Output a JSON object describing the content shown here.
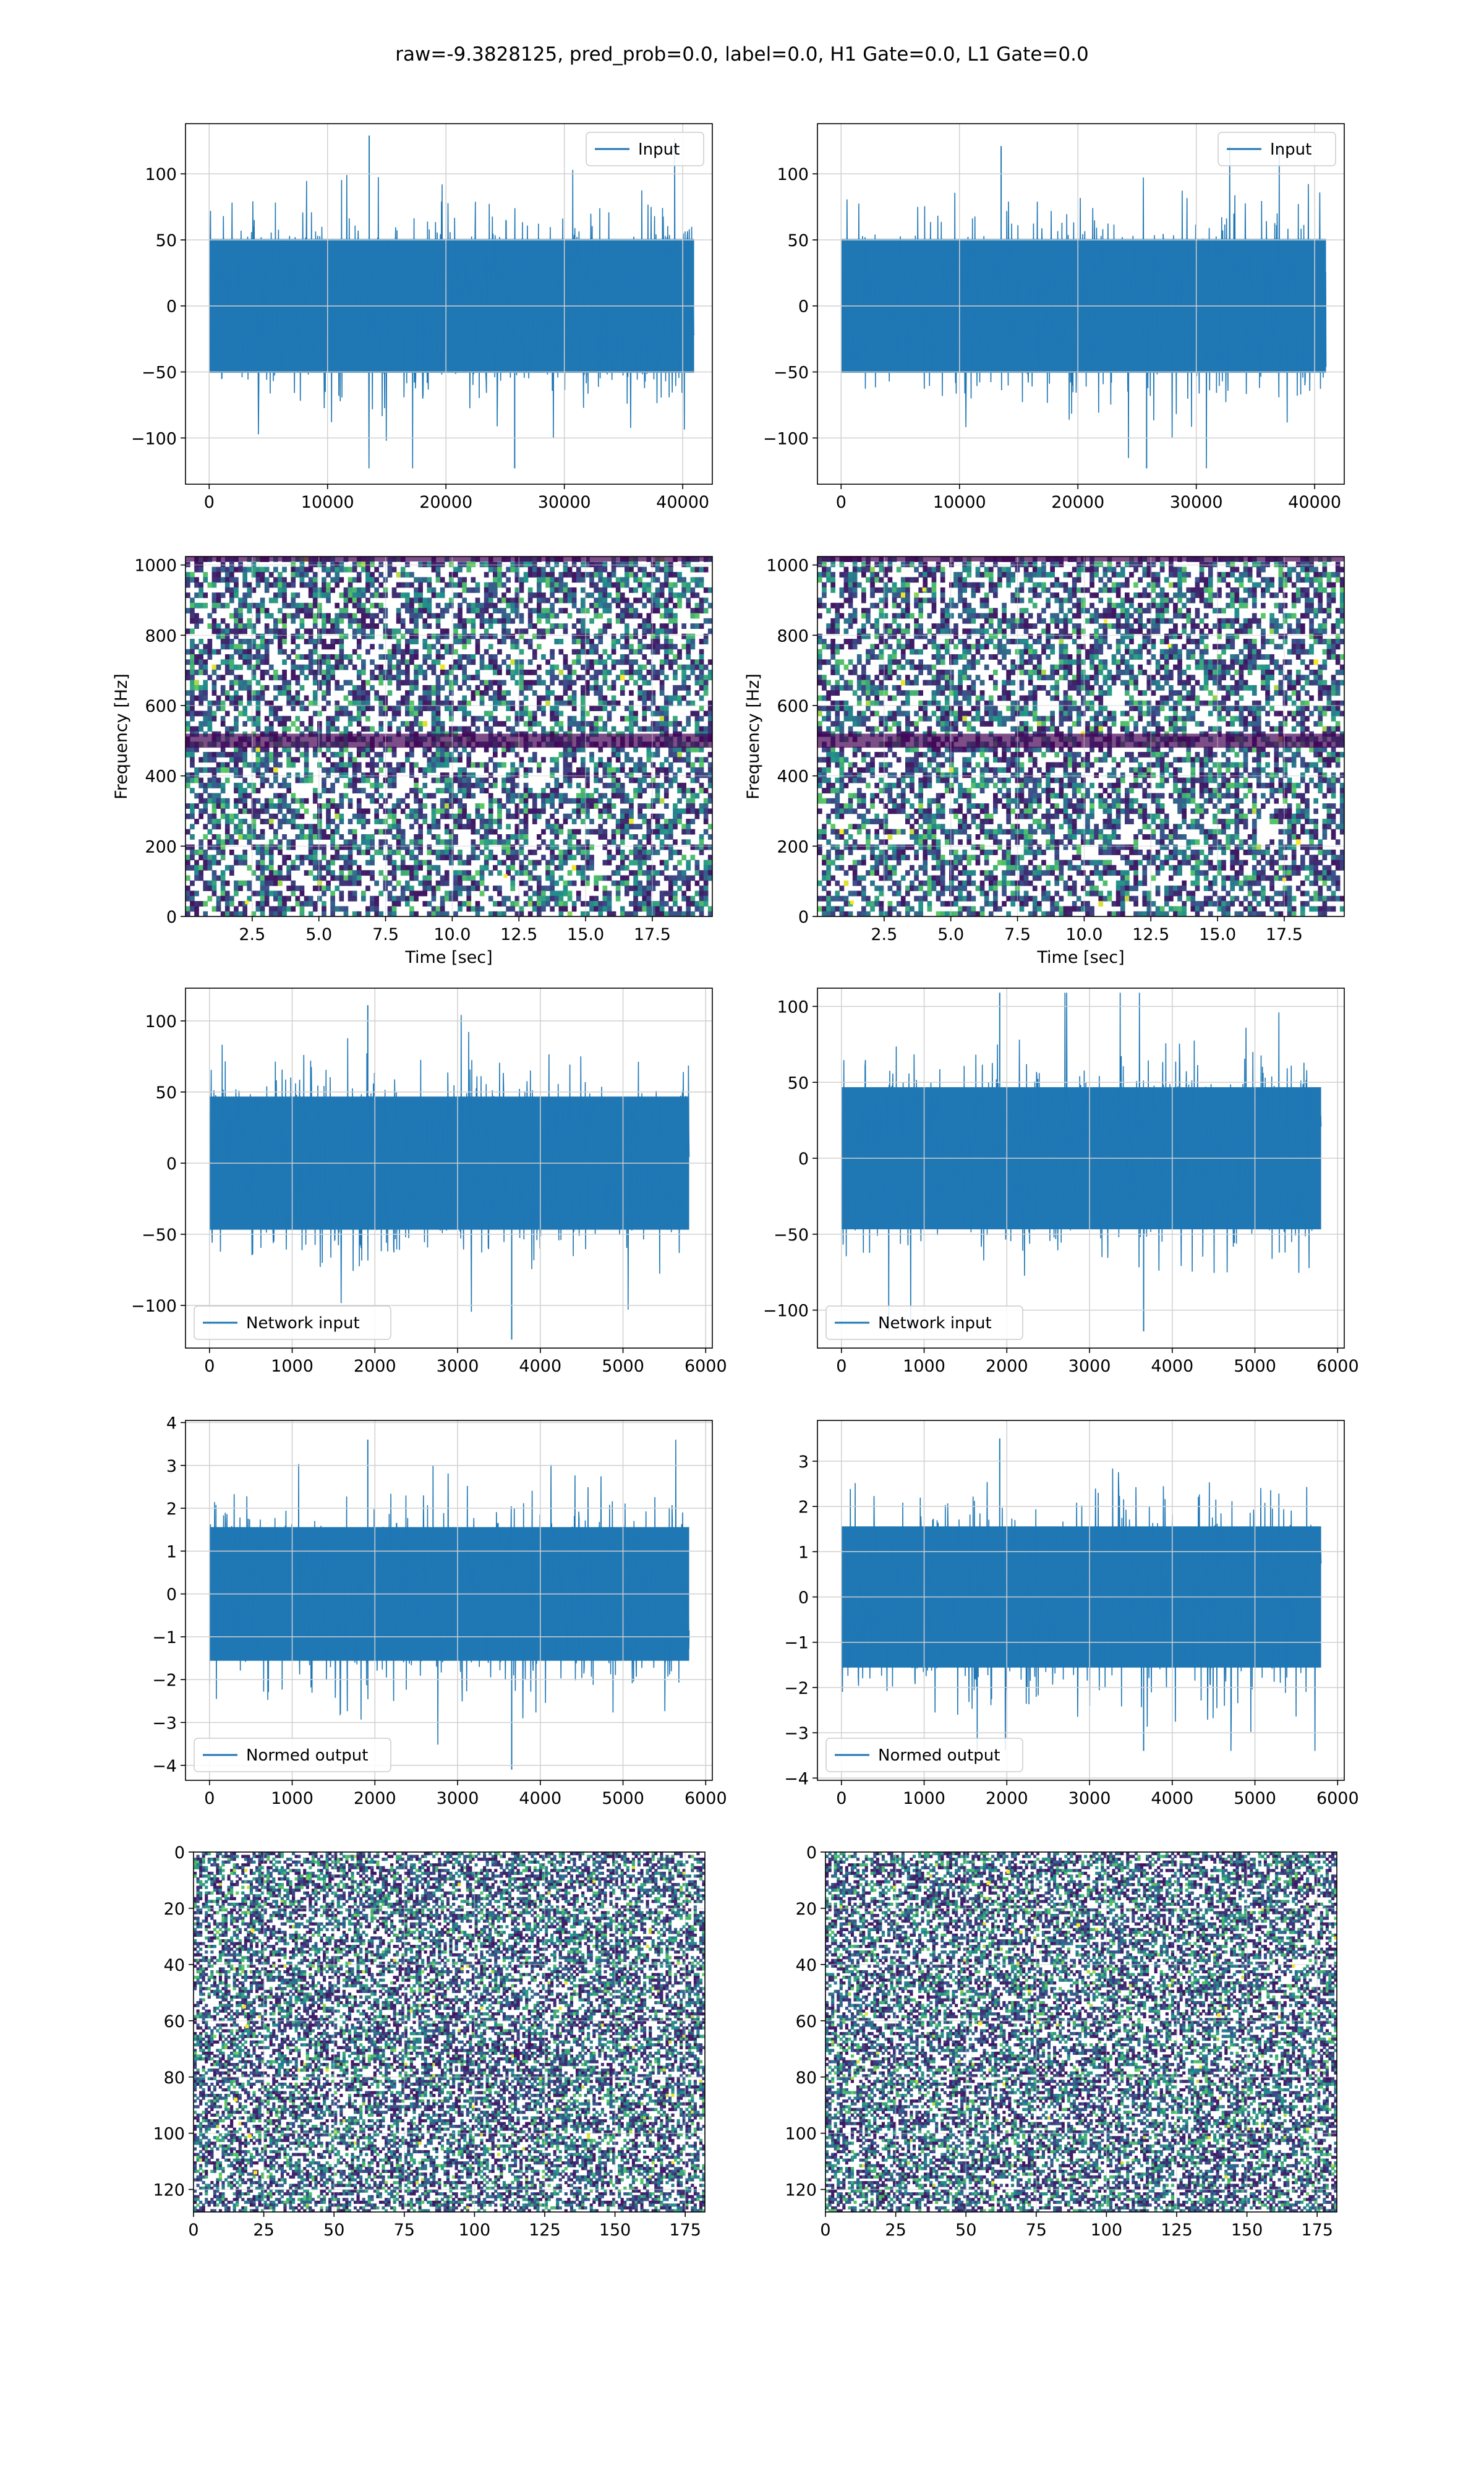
{
  "figure": {
    "suptitle": "raw=-9.3828125, pred_prob=0.0, label=0.0, H1 Gate=0.0, L1 Gate=0.0",
    "colors": {
      "line": "#1f77b4",
      "grid": "#d0d0d0",
      "viridis_low": "#440154",
      "viridis_mid": "#3b528b",
      "viridis_teal": "#21918c",
      "viridis_green": "#5ec962",
      "viridis_yellow": "#fde725"
    }
  },
  "chart_data": [
    {
      "id": "input-left",
      "type": "line",
      "panel": "row1-left",
      "legend": [
        "Input"
      ],
      "legend_loc": "upper right",
      "xlim": [
        -2000,
        42500
      ],
      "ylim": [
        -135,
        138
      ],
      "xticks": [
        "0",
        "10000",
        "20000",
        "30000",
        "40000"
      ],
      "xtick_values": [
        0,
        10000,
        20000,
        30000,
        40000
      ],
      "yticks": [
        "100",
        "50",
        "0",
        "−50",
        "−100"
      ],
      "ytick_values": [
        100,
        50,
        0,
        -50,
        -100
      ],
      "x_range": [
        0,
        40960
      ],
      "y_envelope": [
        -123,
        129
      ],
      "typical_range": [
        -65,
        65
      ],
      "grid": true
    },
    {
      "id": "input-right",
      "type": "line",
      "panel": "row1-right",
      "legend": [
        "Input"
      ],
      "legend_loc": "upper right",
      "xlim": [
        -2000,
        42500
      ],
      "ylim": [
        -135,
        138
      ],
      "xticks": [
        "0",
        "10000",
        "20000",
        "30000",
        "40000"
      ],
      "xtick_values": [
        0,
        10000,
        20000,
        30000,
        40000
      ],
      "yticks": [
        "100",
        "50",
        "0",
        "−50",
        "−100"
      ],
      "ytick_values": [
        100,
        50,
        0,
        -50,
        -100
      ],
      "x_range": [
        0,
        40960
      ],
      "y_envelope": [
        -123,
        121
      ],
      "typical_range": [
        -65,
        65
      ],
      "grid": true
    },
    {
      "id": "spec-left",
      "type": "heatmap",
      "panel": "row2-left",
      "xlabel": "Time [sec]",
      "ylabel": "Frequency [Hz]",
      "xlim": [
        0,
        19.75
      ],
      "ylim": [
        0,
        1024
      ],
      "xticks": [
        "2.5",
        "5.0",
        "7.5",
        "10.0",
        "12.5",
        "15.0",
        "17.5"
      ],
      "xtick_values": [
        2.5,
        5,
        7.5,
        10,
        12.5,
        15,
        17.5
      ],
      "yticks": [
        "0",
        "200",
        "400",
        "600",
        "800",
        "1000"
      ],
      "ytick_values": [
        0,
        200,
        400,
        600,
        800,
        1000
      ],
      "colormap": "viridis",
      "grid": true,
      "hot_spots": [
        [
          2.3,
          40
        ],
        [
          12.0,
          115
        ]
      ],
      "dark_band_hz": [
        [
          480,
          520
        ],
        [
          1010,
          1024
        ]
      ]
    },
    {
      "id": "spec-right",
      "type": "heatmap",
      "panel": "row2-right",
      "xlabel": "Time [sec]",
      "ylabel": "Frequency [Hz]",
      "xlim": [
        0,
        19.75
      ],
      "ylim": [
        0,
        1024
      ],
      "xticks": [
        "2.5",
        "5.0",
        "7.5",
        "10.0",
        "12.5",
        "15.0",
        "17.5"
      ],
      "xtick_values": [
        2.5,
        5,
        7.5,
        10,
        12.5,
        15,
        17.5
      ],
      "yticks": [
        "0",
        "200",
        "400",
        "600",
        "800",
        "1000"
      ],
      "ytick_values": [
        0,
        200,
        400,
        600,
        800,
        1000
      ],
      "colormap": "viridis",
      "grid": true,
      "hot_spots": [
        [
          10.8,
          840
        ],
        [
          13.2,
          770
        ],
        [
          4.0,
          930
        ],
        [
          17.5,
          105
        ],
        [
          1.3,
          40
        ]
      ],
      "dark_band_hz": [
        [
          480,
          520
        ],
        [
          1010,
          1024
        ]
      ]
    },
    {
      "id": "network-input-left",
      "type": "line",
      "panel": "row3-left",
      "legend": [
        "Network input"
      ],
      "legend_loc": "lower left",
      "xlim": [
        -290,
        6080
      ],
      "ylim": [
        -130,
        123
      ],
      "xticks": [
        "0",
        "1000",
        "2000",
        "3000",
        "4000",
        "5000",
        "6000"
      ],
      "xtick_values": [
        0,
        1000,
        2000,
        3000,
        4000,
        5000,
        6000
      ],
      "yticks": [
        "100",
        "50",
        "0",
        "−50",
        "−100"
      ],
      "ytick_values": [
        100,
        50,
        0,
        -50,
        -100
      ],
      "x_range": [
        0,
        5800
      ],
      "y_envelope": [
        -124,
        111
      ],
      "typical_range": [
        -60,
        60
      ],
      "grid": true
    },
    {
      "id": "network-input-right",
      "type": "line",
      "panel": "row3-right",
      "legend": [
        "Network input"
      ],
      "legend_loc": "lower left",
      "xlim": [
        -290,
        6080
      ],
      "ylim": [
        -125,
        112
      ],
      "xticks": [
        "0",
        "1000",
        "2000",
        "3000",
        "4000",
        "5000",
        "6000"
      ],
      "xtick_values": [
        0,
        1000,
        2000,
        3000,
        4000,
        5000,
        6000
      ],
      "yticks": [
        "100",
        "50",
        "0",
        "−50",
        "−100"
      ],
      "ytick_values": [
        100,
        50,
        0,
        -50,
        -100
      ],
      "x_range": [
        0,
        5800
      ],
      "y_envelope": [
        -114,
        109
      ],
      "typical_range": [
        -60,
        60
      ],
      "grid": true
    },
    {
      "id": "normed-output-left",
      "type": "line",
      "panel": "row4-left",
      "legend": [
        "Normed output"
      ],
      "legend_loc": "lower left",
      "xlim": [
        -290,
        6080
      ],
      "ylim": [
        -4.35,
        4.05
      ],
      "xticks": [
        "0",
        "1000",
        "2000",
        "3000",
        "4000",
        "5000",
        "6000"
      ],
      "xtick_values": [
        0,
        1000,
        2000,
        3000,
        4000,
        5000,
        6000
      ],
      "yticks": [
        "4",
        "3",
        "2",
        "1",
        "0",
        "−1",
        "−2",
        "−3",
        "−4"
      ],
      "ytick_values": [
        4,
        3,
        2,
        1,
        0,
        -1,
        -2,
        -3,
        -4
      ],
      "x_range": [
        0,
        5800
      ],
      "y_envelope": [
        -4.1,
        3.6
      ],
      "typical_range": [
        -2.0,
        2.0
      ],
      "grid": true
    },
    {
      "id": "normed-output-right",
      "type": "line",
      "panel": "row4-right",
      "legend": [
        "Normed output"
      ],
      "legend_loc": "lower left",
      "xlim": [
        -290,
        6080
      ],
      "ylim": [
        -4.05,
        3.9
      ],
      "xticks": [
        "0",
        "1000",
        "2000",
        "3000",
        "4000",
        "5000",
        "6000"
      ],
      "xtick_values": [
        0,
        1000,
        2000,
        3000,
        4000,
        5000,
        6000
      ],
      "yticks": [
        "3",
        "2",
        "1",
        "0",
        "−1",
        "−2",
        "−3",
        "−4"
      ],
      "ytick_values": [
        3,
        2,
        1,
        0,
        -1,
        -2,
        -3,
        -4
      ],
      "x_range": [
        0,
        5800
      ],
      "y_envelope": [
        -3.4,
        3.5
      ],
      "typical_range": [
        -2.0,
        2.0
      ],
      "grid": true
    },
    {
      "id": "image-left",
      "type": "heatmap",
      "panel": "row5-left",
      "xlim": [
        0,
        182
      ],
      "ylim": [
        128,
        0
      ],
      "grid": true,
      "colormap": "viridis",
      "xticks": [
        "0",
        "25",
        "50",
        "75",
        "100",
        "125",
        "150",
        "175"
      ],
      "xtick_values": [
        0,
        25,
        50,
        75,
        100,
        125,
        150,
        175
      ],
      "yticks": [
        "0",
        "20",
        "40",
        "60",
        "80",
        "100",
        "120"
      ],
      "ytick_values": [
        0,
        20,
        40,
        60,
        80,
        100,
        120
      ],
      "hot_spots": [
        [
          18,
          55
        ],
        [
          15,
          88
        ],
        [
          19,
          62
        ],
        [
          20,
          101
        ],
        [
          22,
          114
        ],
        [
          21,
          28
        ]
      ]
    },
    {
      "id": "image-right",
      "type": "heatmap",
      "panel": "row5-right",
      "xlim": [
        0,
        182
      ],
      "ylim": [
        128,
        0
      ],
      "grid": true,
      "colormap": "viridis",
      "xticks": [
        "0",
        "25",
        "50",
        "75",
        "100",
        "125",
        "150",
        "175"
      ],
      "xtick_values": [
        0,
        25,
        50,
        75,
        100,
        125,
        150,
        175
      ],
      "yticks": [
        "0",
        "20",
        "40",
        "60",
        "80",
        "100",
        "120"
      ],
      "ytick_values": [
        0,
        20,
        40,
        60,
        80,
        100,
        120
      ],
      "hot_spots": [
        [
          65,
          7
        ],
        [
          58,
          11
        ],
        [
          90,
          26
        ],
        [
          55,
          61
        ],
        [
          140,
          58
        ]
      ]
    }
  ]
}
